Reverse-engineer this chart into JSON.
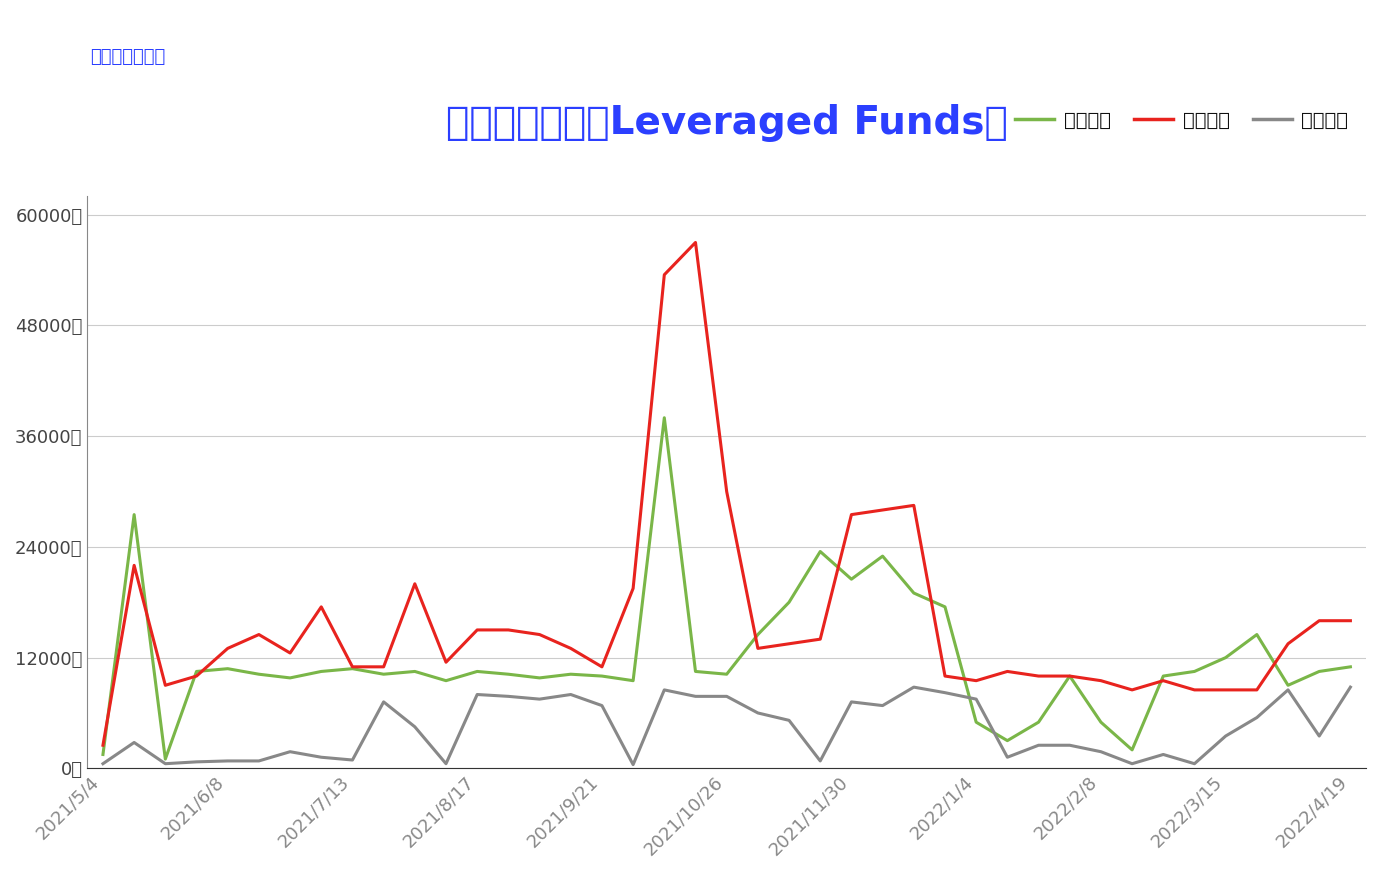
{
  "title": "杆杆基金持仓（Leveraged Funds）",
  "subtitle": "微型比特币合约",
  "title_color": "#2b3fff",
  "subtitle_color": "#2b3fff",
  "background_color": "#ffffff",
  "line_colors": {
    "long": "#7ab648",
    "short": "#e8231e",
    "spread": "#888888"
  },
  "x_labels": [
    "2021/5/4",
    "2021/6/8",
    "2021/7/13",
    "2021/8/17",
    "2021/9/21",
    "2021/10/26",
    "2021/11/30",
    "2022/1/4",
    "2022/2/8",
    "2022/3/15",
    "2022/4/19"
  ],
  "long_values": [
    1500,
    27500,
    1000,
    10500,
    10800,
    10200,
    9800,
    10500,
    10800,
    10200,
    10500,
    9500,
    10500,
    10200,
    9800,
    10200,
    10000,
    9500,
    38000,
    10500,
    10200,
    14500,
    18000,
    23500,
    20500,
    23000,
    19000,
    17500,
    5000,
    3000,
    5000,
    10000,
    5000,
    2000,
    10000,
    10500,
    12000,
    14500,
    9000,
    10500,
    11000
  ],
  "short_values": [
    2500,
    22000,
    9000,
    10000,
    13000,
    14500,
    12500,
    17500,
    11000,
    11000,
    20000,
    11500,
    15000,
    15000,
    14500,
    13000,
    11000,
    19500,
    53500,
    57000,
    30000,
    13000,
    13500,
    14000,
    27500,
    28000,
    28500,
    10000,
    9500,
    10500,
    10000,
    10000,
    9500,
    8500,
    9500,
    8500,
    8500,
    8500,
    13500,
    16000,
    16000
  ],
  "spread_values": [
    500,
    2800,
    500,
    700,
    800,
    800,
    1800,
    1200,
    900,
    7200,
    4500,
    500,
    8000,
    7800,
    7500,
    8000,
    6800,
    400,
    8500,
    7800,
    7800,
    6000,
    5200,
    800,
    7200,
    6800,
    8800,
    8200,
    7500,
    1200,
    2500,
    2500,
    1800,
    500,
    1500,
    500,
    3500,
    5500,
    8500,
    3500,
    8800
  ],
  "yticks": [
    0,
    12000,
    24000,
    36000,
    48000,
    60000
  ],
  "ylim": [
    0,
    62000
  ],
  "legend_labels": [
    "多头头寸",
    "空头头寸",
    "双向持仓"
  ]
}
